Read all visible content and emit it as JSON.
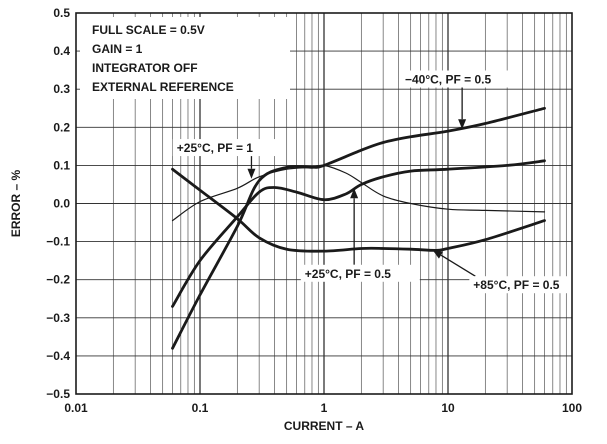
{
  "chart_data": {
    "type": "line",
    "xscale": "log",
    "xlim": [
      0.01,
      100
    ],
    "ylim": [
      -0.5,
      0.5
    ],
    "xlabel": "CURRENT – A",
    "ylabel": "ERROR – %",
    "x_tick_labels": [
      "0.01",
      "0.1",
      "1",
      "10",
      "100"
    ],
    "y_tick_labels": [
      "0.5",
      "0.4",
      "0.3",
      "0.2",
      "0.1",
      "0.0",
      "−0.1",
      "−0.2",
      "−0.3",
      "−0.4",
      "−0.5"
    ],
    "y_ticks": [
      0.5,
      0.4,
      0.3,
      0.2,
      0.1,
      0.0,
      -0.1,
      -0.2,
      -0.3,
      -0.4,
      -0.5
    ],
    "grid": true,
    "conditions": [
      "FULL SCALE = 0.5V",
      "GAIN = 1",
      "INTEGRATOR OFF",
      "EXTERNAL REFERENCE"
    ],
    "series": [
      {
        "name": "−40°C, PF = 0.5",
        "weight": "bold",
        "x": [
          0.06,
          0.1,
          0.2,
          0.3,
          0.5,
          0.8,
          1,
          2,
          3,
          5,
          10,
          20,
          60
        ],
        "y": [
          -0.38,
          -0.24,
          -0.06,
          0.06,
          0.095,
          0.095,
          0.1,
          0.14,
          0.16,
          0.175,
          0.19,
          0.21,
          0.25
        ]
      },
      {
        "name": "+25°C, PF = 1",
        "weight": "thin",
        "x": [
          0.06,
          0.1,
          0.2,
          0.3,
          0.5,
          0.8,
          1,
          1.5,
          2,
          3,
          5,
          10,
          20,
          60
        ],
        "y": [
          -0.045,
          0.005,
          0.04,
          0.07,
          0.09,
          0.095,
          0.1,
          0.08,
          0.055,
          0.02,
          0.0,
          -0.015,
          -0.018,
          -0.022
        ]
      },
      {
        "name": "+25°C, PF = 0.5",
        "weight": "bold",
        "x": [
          0.06,
          0.1,
          0.2,
          0.3,
          0.4,
          0.6,
          1,
          1.5,
          2,
          3,
          5,
          10,
          30,
          60
        ],
        "y": [
          -0.27,
          -0.15,
          -0.035,
          0.03,
          0.042,
          0.03,
          0.01,
          0.025,
          0.05,
          0.07,
          0.085,
          0.09,
          0.1,
          0.112
        ]
      },
      {
        "name": "+85°C, PF = 0.5",
        "weight": "bold",
        "x": [
          0.06,
          0.1,
          0.2,
          0.3,
          0.5,
          1,
          2,
          3,
          5,
          8,
          10,
          20,
          60
        ],
        "y": [
          0.09,
          0.035,
          -0.04,
          -0.09,
          -0.12,
          -0.125,
          -0.118,
          -0.118,
          -0.12,
          -0.123,
          -0.118,
          -0.095,
          -0.045
        ]
      }
    ],
    "annotations": [
      {
        "text": "−40°C, PF = 0.5",
        "text_x": 4.5,
        "text_y": 0.315,
        "arrow_x": 13,
        "arrow_y": 0.195
      },
      {
        "text": "+25°C, PF = 1",
        "text_x": 0.065,
        "text_y": 0.135,
        "arrow_x": 0.26,
        "arrow_y": 0.065
      },
      {
        "text": "+25°C, PF = 0.5",
        "text_x": 0.7,
        "text_y": -0.195,
        "arrow_x": 1.75,
        "arrow_y": 0.04
      },
      {
        "text": "+85°C, PF = 0.5",
        "text_x": 16,
        "text_y": -0.225,
        "arrow_x": 7.5,
        "arrow_y": -0.122
      }
    ]
  }
}
